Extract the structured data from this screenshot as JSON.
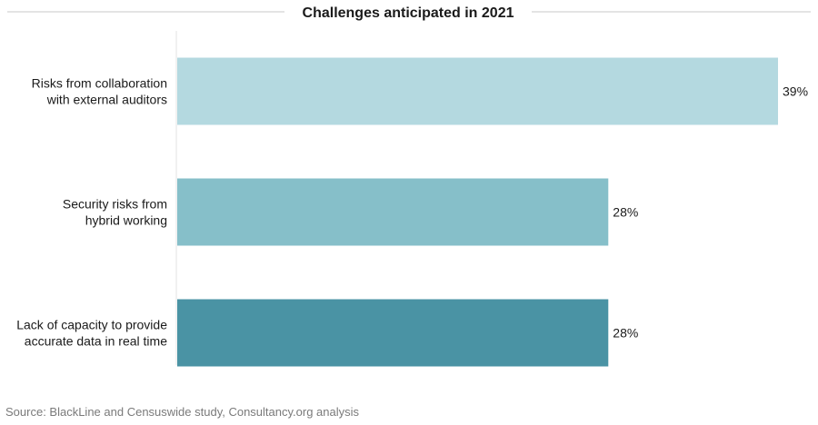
{
  "chart_data": {
    "type": "bar",
    "orientation": "horizontal",
    "title": "Challenges anticipated in 2021",
    "categories": [
      [
        "Risks from collaboration",
        "with external auditors"
      ],
      [
        "Security risks from",
        "hybrid working"
      ],
      [
        "Lack of capacity to provide",
        "accurate data in real time"
      ]
    ],
    "values": [
      39,
      28,
      28
    ],
    "value_labels": [
      "39%",
      "28%",
      "28%"
    ],
    "unit": "%",
    "xlim": [
      0,
      39
    ],
    "colors": [
      "#b4d9e0",
      "#86bfc9",
      "#4a93a4"
    ],
    "grid": false,
    "legend": "none"
  },
  "source": "Source: BlackLine and Censuswide study, Consultancy.org analysis"
}
